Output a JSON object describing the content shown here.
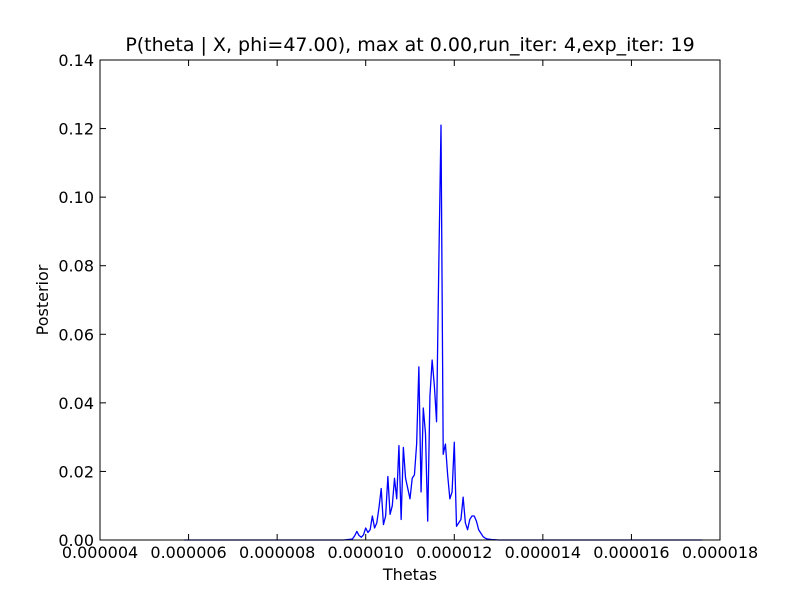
{
  "chart_data": {
    "type": "line",
    "title": "P(theta | X, phi=47.00), max at 0.00,run_iter: 4,exp_iter: 19",
    "xlabel": "Thetas",
    "ylabel": "Posterior",
    "xlim": [
      4e-06,
      1.8e-05
    ],
    "ylim": [
      0.0,
      0.14
    ],
    "xticks": [
      4e-06,
      6e-06,
      8e-06,
      1e-05,
      1.2e-05,
      1.4e-05,
      1.6e-05,
      1.8e-05
    ],
    "xtick_labels": [
      "0.000004",
      "0.000006",
      "0.000008",
      "0.000010",
      "0.000012",
      "0.000014",
      "0.000016",
      "0.000018"
    ],
    "yticks": [
      0.0,
      0.02,
      0.04,
      0.06,
      0.08,
      0.1,
      0.12,
      0.14
    ],
    "ytick_labels": [
      "0.00",
      "0.02",
      "0.04",
      "0.06",
      "0.08",
      "0.10",
      "0.12",
      "0.14"
    ],
    "grid": false,
    "legend": false,
    "series": [
      {
        "color": "#0000ff",
        "x": [
          5.9e-06,
          9.5e-06,
          9.7e-06,
          9.75e-06,
          9.8e-06,
          9.85e-06,
          9.9e-06,
          9.95e-06,
          1e-05,
          1.005e-05,
          1.01e-05,
          1.015e-05,
          1.02e-05,
          1.025e-05,
          1.03e-05,
          1.035e-05,
          1.04e-05,
          1.045e-05,
          1.05e-05,
          1.055e-05,
          1.06e-05,
          1.065e-05,
          1.07e-05,
          1.075e-05,
          1.08e-05,
          1.085e-05,
          1.09e-05,
          1.095e-05,
          1.1e-05,
          1.105e-05,
          1.11e-05,
          1.115e-05,
          1.12e-05,
          1.125e-05,
          1.13e-05,
          1.135e-05,
          1.14e-05,
          1.145e-05,
          1.15e-05,
          1.155e-05,
          1.16e-05,
          1.165e-05,
          1.17e-05,
          1.175e-05,
          1.18e-05,
          1.185e-05,
          1.19e-05,
          1.195e-05,
          1.2e-05,
          1.205e-05,
          1.21e-05,
          1.215e-05,
          1.22e-05,
          1.225e-05,
          1.23e-05,
          1.235e-05,
          1.24e-05,
          1.245e-05,
          1.25e-05,
          1.255e-05,
          1.26e-05,
          1.265e-05,
          1.27e-05,
          1.275e-05,
          1.28e-05,
          1.285e-05,
          1.29e-05,
          1.3e-05,
          1.31e-05,
          1.76e-05
        ],
        "y": [
          0.0,
          0.0,
          0.0003,
          0.0012,
          0.0025,
          0.0013,
          0.0008,
          0.0015,
          0.0035,
          0.0022,
          0.003,
          0.007,
          0.0035,
          0.005,
          0.0095,
          0.015,
          0.0045,
          0.007,
          0.0185,
          0.0075,
          0.01,
          0.018,
          0.012,
          0.0275,
          0.006,
          0.027,
          0.018,
          0.015,
          0.012,
          0.018,
          0.019,
          0.028,
          0.0505,
          0.014,
          0.0385,
          0.031,
          0.0055,
          0.042,
          0.0525,
          0.045,
          0.0345,
          0.08,
          0.121,
          0.025,
          0.028,
          0.019,
          0.012,
          0.014,
          0.0285,
          0.004,
          0.005,
          0.006,
          0.0125,
          0.005,
          0.003,
          0.006,
          0.007,
          0.007,
          0.0055,
          0.003,
          0.002,
          0.001,
          0.0005,
          0.0003,
          0.0002,
          0.0001,
          0.0001,
          0.0,
          0.0,
          0.0
        ]
      }
    ]
  }
}
